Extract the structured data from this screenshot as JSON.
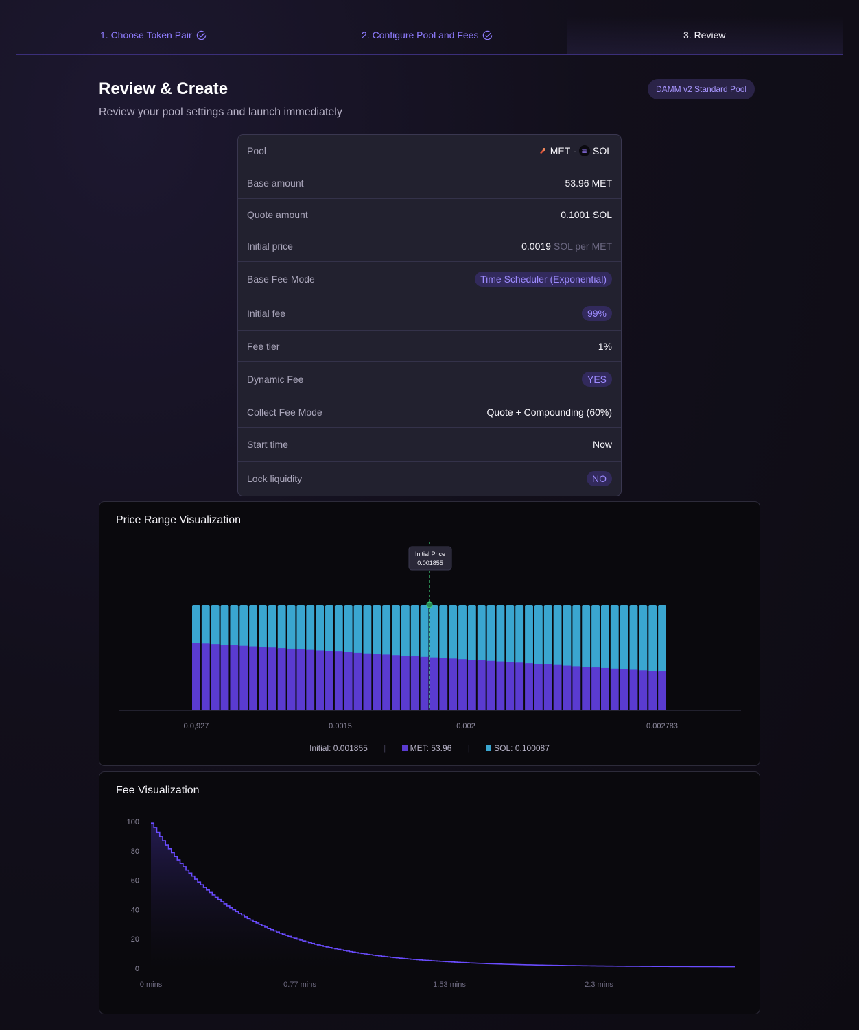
{
  "steps": [
    {
      "label": "1. Choose Token Pair",
      "done": true
    },
    {
      "label": "2. Configure Pool and Fees",
      "done": true
    },
    {
      "label": "3. Review",
      "done": false
    }
  ],
  "header": {
    "title": "Review & Create",
    "subtitle": "Review your pool settings and launch immediately",
    "pool_type_badge": "DAMM v2 Standard Pool"
  },
  "summary": {
    "pool": {
      "label": "Pool",
      "base": "MET",
      "dash": "-",
      "quote": "SOL"
    },
    "base_amount": {
      "label": "Base amount",
      "value": "53.96 MET"
    },
    "quote_amount": {
      "label": "Quote amount",
      "value": "0.1001 SOL"
    },
    "initial_price": {
      "label": "Initial price",
      "value": "0.0019",
      "unit": "SOL per MET"
    },
    "base_fee_mode": {
      "label": "Base Fee Mode",
      "value": "Time Scheduler (Exponential)"
    },
    "initial_fee": {
      "label": "Initial fee",
      "value": "99%"
    },
    "fee_tier": {
      "label": "Fee tier",
      "value": "1%"
    },
    "dynamic_fee": {
      "label": "Dynamic Fee",
      "value": "YES"
    },
    "collect_fee_mode": {
      "label": "Collect Fee Mode",
      "value": "Quote + Compounding (60%)"
    },
    "start_time": {
      "label": "Start time",
      "value": "Now"
    },
    "lock_liquidity": {
      "label": "Lock liquidity",
      "value": "NO"
    }
  },
  "colors": {
    "accent": "#8f7cff",
    "met_bar": "#5a3bd0",
    "sol_bar": "#3aa6d0",
    "initial_line": "#3ecf7a",
    "fee_line": "#6a4cff"
  },
  "price_panel": {
    "title": "Price Range Visualization",
    "tooltip_label": "Initial Price",
    "tooltip_value": "0.001855",
    "legend_initial": "Initial: 0.001855",
    "legend_met": "MET: 53.96",
    "legend_sol": "SOL: 0.100087"
  },
  "fee_panel": {
    "title": "Fee Visualization"
  },
  "chart_data": [
    {
      "type": "bar",
      "title": "Price Range Visualization",
      "x_tick_labels": [
        "0.0,927",
        "0.0015",
        "0.002",
        "0.002783"
      ],
      "x_range": [
        0.000927,
        0.002783
      ],
      "initial_price": 0.001855,
      "bar_count": 50,
      "series": [
        {
          "name": "MET",
          "values_fraction_of_bar": [
            0.64,
            0.63,
            0.62,
            0.61,
            0.6,
            0.59,
            0.58,
            0.577,
            0.57,
            0.565
          ]
        },
        {
          "name": "SOL",
          "values_fraction_of_bar": [
            0.36,
            0.37,
            0.38,
            0.39,
            0.4,
            0.41,
            0.42,
            0.423,
            0.43,
            0.435
          ]
        }
      ],
      "met_fraction_start": 0.64,
      "met_fraction_end": 0.37
    },
    {
      "type": "line",
      "title": "Fee Visualization",
      "y_ticks": [
        "100",
        "80",
        "60",
        "40",
        "20",
        "0"
      ],
      "x_ticks": [
        "0 mins",
        "0.77 mins",
        "1.53 mins",
        "2.3 mins"
      ],
      "ylim": [
        0,
        100
      ],
      "xlim": [
        0,
        3.0
      ],
      "initial_fee": 99,
      "final_fee": 1,
      "decay": "exponential"
    }
  ]
}
